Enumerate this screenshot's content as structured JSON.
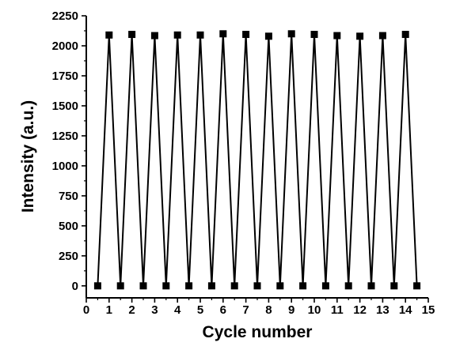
{
  "chart_data": {
    "type": "line",
    "xlabel": "Cycle number",
    "ylabel": "Intensity (a.u.)",
    "xlim": [
      0,
      15
    ],
    "ylim": [
      -100,
      2250
    ],
    "x_ticks": [
      0,
      1,
      2,
      3,
      4,
      5,
      6,
      7,
      8,
      9,
      10,
      11,
      12,
      13,
      14,
      15
    ],
    "y_ticks": [
      0,
      250,
      500,
      750,
      1000,
      1250,
      1500,
      1750,
      2000,
      2250
    ],
    "grid": false,
    "legend": "none",
    "series": [
      {
        "marker": "square",
        "color": "#000000",
        "points": [
          {
            "x": 0.5,
            "y": 0
          },
          {
            "x": 1.0,
            "y": 2090
          },
          {
            "x": 1.5,
            "y": 0
          },
          {
            "x": 2.0,
            "y": 2095
          },
          {
            "x": 2.5,
            "y": 0
          },
          {
            "x": 3.0,
            "y": 2085
          },
          {
            "x": 3.5,
            "y": 0
          },
          {
            "x": 4.0,
            "y": 2090
          },
          {
            "x": 4.5,
            "y": 0
          },
          {
            "x": 5.0,
            "y": 2090
          },
          {
            "x": 5.5,
            "y": 0
          },
          {
            "x": 6.0,
            "y": 2100
          },
          {
            "x": 6.5,
            "y": 0
          },
          {
            "x": 7.0,
            "y": 2095
          },
          {
            "x": 7.5,
            "y": 0
          },
          {
            "x": 8.0,
            "y": 2080
          },
          {
            "x": 8.5,
            "y": 0
          },
          {
            "x": 9.0,
            "y": 2100
          },
          {
            "x": 9.5,
            "y": 0
          },
          {
            "x": 10.0,
            "y": 2095
          },
          {
            "x": 10.5,
            "y": 0
          },
          {
            "x": 11.0,
            "y": 2085
          },
          {
            "x": 11.5,
            "y": 0
          },
          {
            "x": 12.0,
            "y": 2080
          },
          {
            "x": 12.5,
            "y": 0
          },
          {
            "x": 13.0,
            "y": 2085
          },
          {
            "x": 13.5,
            "y": 0
          },
          {
            "x": 14.0,
            "y": 2095
          },
          {
            "x": 14.5,
            "y": 0
          }
        ]
      }
    ]
  }
}
